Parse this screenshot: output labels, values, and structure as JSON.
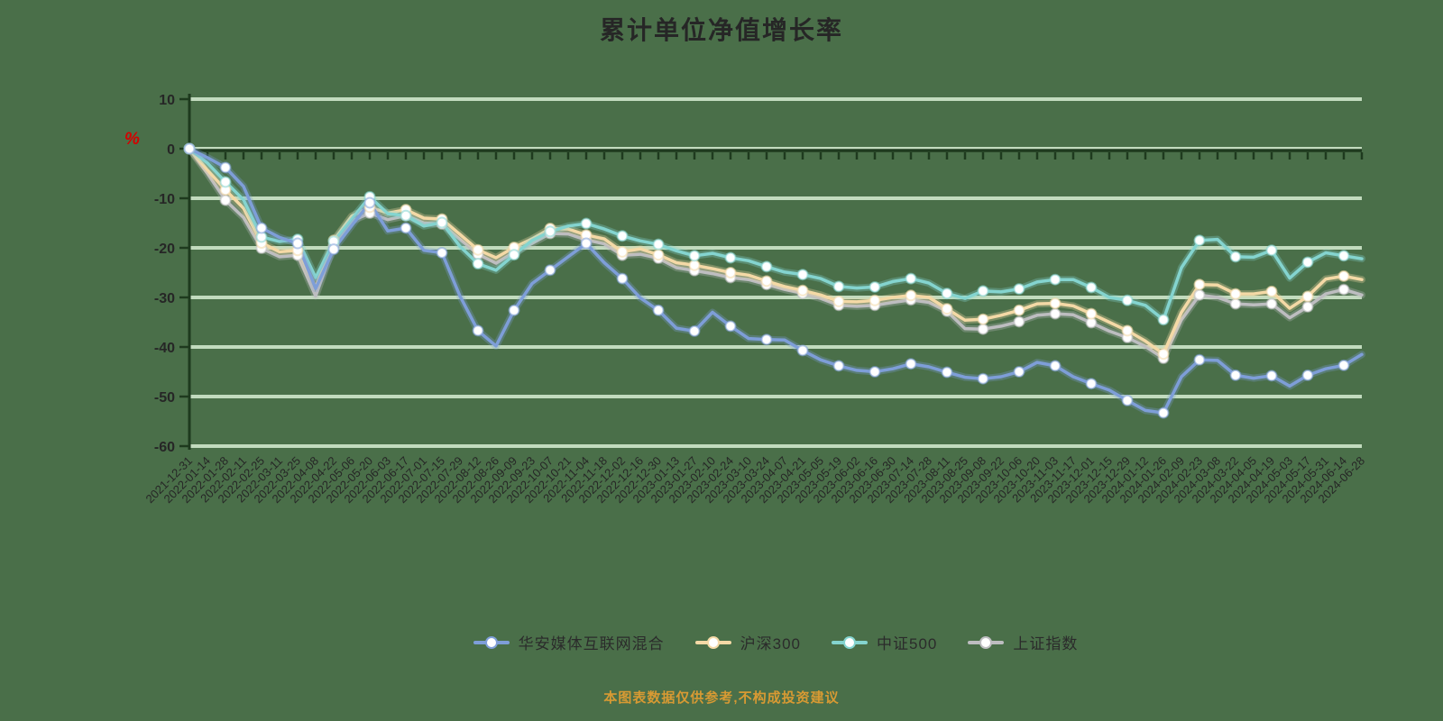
{
  "title": "累计单位净值增长率",
  "y_unit": "%",
  "footer": "本图表数据仅供参考,不构成投资建议",
  "colors": {
    "background": "#4a6f49",
    "grid": "#cfe7cb",
    "axis": "#1e3a1e",
    "text": "#262626",
    "unit_red": "#d40000",
    "footer_orange": "#d89a33",
    "marker_fill": "#ffffff"
  },
  "legend": {
    "items": [
      {
        "label": "华安媒体互联网混合",
        "color": "#7e9ed8"
      },
      {
        "label": "沪深300",
        "color": "#f4d9a6"
      },
      {
        "label": "中证500",
        "color": "#84d4cf"
      },
      {
        "label": "上证指数",
        "color": "#bdbdc0"
      }
    ]
  },
  "chart_data": {
    "type": "line",
    "title": "累计单位净值增长率",
    "xlabel": "",
    "ylabel": "%",
    "ylim": [
      -60,
      10
    ],
    "yticks": [
      10,
      0,
      -10,
      -20,
      -30,
      -40,
      -50,
      -60
    ],
    "grid": true,
    "legend_position": "bottom",
    "x": [
      "2021-12-31",
      "2022-01-14",
      "2022-01-28",
      "2022-02-11",
      "2022-02-25",
      "2022-03-11",
      "2022-03-25",
      "2022-04-08",
      "2022-04-22",
      "2022-05-06",
      "2022-05-20",
      "2022-06-03",
      "2022-06-17",
      "2022-07-01",
      "2022-07-15",
      "2022-07-29",
      "2022-08-12",
      "2022-08-26",
      "2022-09-09",
      "2022-09-23",
      "2022-10-07",
      "2022-10-21",
      "2022-11-04",
      "2022-11-18",
      "2022-12-02",
      "2022-12-16",
      "2022-12-30",
      "2023-01-13",
      "2023-01-27",
      "2023-02-10",
      "2023-02-24",
      "2023-03-10",
      "2023-03-24",
      "2023-04-07",
      "2023-04-21",
      "2023-05-05",
      "2023-05-19",
      "2023-06-02",
      "2023-06-16",
      "2023-06-30",
      "2023-07-14",
      "2023-07-28",
      "2023-08-11",
      "2023-08-25",
      "2023-09-08",
      "2023-09-22",
      "2023-10-06",
      "2023-10-20",
      "2023-11-03",
      "2023-11-17",
      "2023-12-01",
      "2023-12-15",
      "2023-12-29",
      "2024-01-12",
      "2024-01-26",
      "2024-02-09",
      "2024-02-23",
      "2024-03-08",
      "2024-03-22",
      "2024-04-05",
      "2024-04-19",
      "2024-05-03",
      "2024-05-17",
      "2024-05-31",
      "2024-06-14",
      "2024-06-28"
    ],
    "series": [
      {
        "name": "上证指数",
        "color": "#bdbdc0",
        "values": [
          0,
          -5,
          -10.4,
          -13.9,
          -20.1,
          -21.8,
          -21.5,
          -29.7,
          -19.5,
          -14.6,
          -13,
          -14.3,
          -13.5,
          -15,
          -15.2,
          -18.3,
          -21.3,
          -23.1,
          -20.9,
          -19.1,
          -17.1,
          -17.2,
          -18.4,
          -19.2,
          -21.5,
          -21.3,
          -22.1,
          -24,
          -24.6,
          -25.2,
          -26,
          -26.4,
          -27.4,
          -28.4,
          -29.2,
          -30.2,
          -31.6,
          -31.8,
          -31.6,
          -31,
          -30.5,
          -31,
          -32.8,
          -36.3,
          -36.4,
          -35.8,
          -34.9,
          -33.6,
          -33.3,
          -33.5,
          -35.1,
          -36.8,
          -38.1,
          -39.9,
          -42.3,
          -34.5,
          -29.5,
          -30,
          -31.3,
          -31.5,
          -31.3,
          -34.1,
          -31.9,
          -29.3,
          -28.4,
          -29.5
        ]
      },
      {
        "name": "沪深300",
        "color": "#f4d9a6",
        "values": [
          0,
          -4.3,
          -8.3,
          -12,
          -19,
          -20.8,
          -20.5,
          -28,
          -18.5,
          -13.6,
          -11.8,
          -13,
          -12.3,
          -14,
          -14.2,
          -17.3,
          -20.4,
          -22,
          -19.9,
          -18.2,
          -16.1,
          -16.2,
          -17.4,
          -18.2,
          -20.8,
          -20.2,
          -21.4,
          -23,
          -23.5,
          -24.2,
          -25,
          -25.5,
          -26.7,
          -27.8,
          -28.6,
          -29.5,
          -30.8,
          -30.9,
          -30.6,
          -30,
          -29.6,
          -30,
          -32.3,
          -34.6,
          -34.4,
          -33.6,
          -32.6,
          -31.3,
          -31.2,
          -31.7,
          -33.3,
          -35,
          -36.7,
          -38.8,
          -41.4,
          -33,
          -27.4,
          -27.5,
          -29.3,
          -29.3,
          -28.8,
          -32.2,
          -29.8,
          -26.3,
          -25.7,
          -26.4
        ]
      },
      {
        "name": "中证500",
        "color": "#84d4cf",
        "values": [
          0,
          -2.9,
          -6.7,
          -10.3,
          -17.8,
          -18.7,
          -18.3,
          -26,
          -18.7,
          -14.2,
          -9.7,
          -13.1,
          -13.5,
          -15.6,
          -14.9,
          -19.7,
          -23.2,
          -24.5,
          -21.4,
          -18.5,
          -16.7,
          -15.6,
          -15.1,
          -16.2,
          -17.6,
          -18.6,
          -19.3,
          -20.6,
          -21.6,
          -21.1,
          -22,
          -22.6,
          -23.8,
          -24.9,
          -25.4,
          -26.2,
          -27.8,
          -28.1,
          -27.9,
          -26.8,
          -26.2,
          -27.1,
          -29.2,
          -30.2,
          -28.7,
          -28.9,
          -28.3,
          -26.9,
          -26.4,
          -26.4,
          -28,
          -30,
          -30.6,
          -31.6,
          -34.5,
          -24,
          -18.5,
          -18.3,
          -21.8,
          -21.9,
          -20.5,
          -26.1,
          -22.9,
          -21,
          -21.6,
          -22.2
        ]
      },
      {
        "name": "华安媒体互联网混合",
        "color": "#7e9ed8",
        "values": [
          0,
          -1.8,
          -3.8,
          -7.6,
          -16,
          -17.9,
          -19.1,
          -28.2,
          -20.3,
          -15.5,
          -10.9,
          -16.6,
          -16,
          -20.5,
          -21,
          -29.7,
          -36.7,
          -39.8,
          -32.6,
          -27.2,
          -24.5,
          -21.8,
          -19.1,
          -23,
          -26.2,
          -30.1,
          -32.6,
          -36.2,
          -36.8,
          -33,
          -35.8,
          -38.3,
          -38.5,
          -38.6,
          -40.7,
          -42.6,
          -43.8,
          -44.7,
          -45,
          -44.4,
          -43.4,
          -44,
          -45.1,
          -46.1,
          -46.4,
          -46,
          -45,
          -43.1,
          -43.8,
          -46,
          -47.4,
          -48.7,
          -50.8,
          -52.8,
          -53.3,
          -46,
          -42.6,
          -42.7,
          -45.7,
          -46.3,
          -45.8,
          -47.9,
          -45.7,
          -44.4,
          -43.7,
          -41.5
        ]
      }
    ]
  }
}
